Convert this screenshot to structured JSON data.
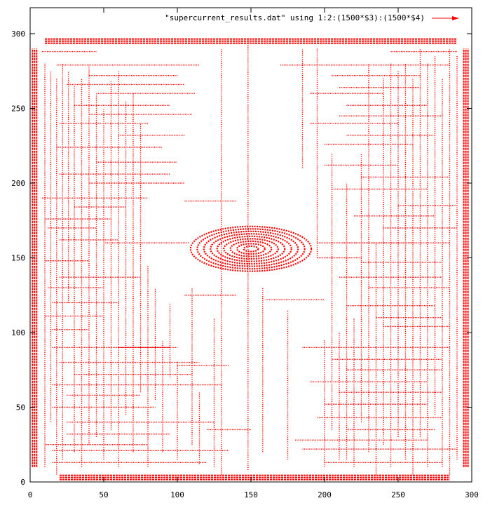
{
  "chart_data": {
    "type": "vector-field",
    "legend": {
      "label": "\"supercurrent_results.dat\" using 1:2:(1500*$3):(1500*$4)",
      "color": "#ff0000",
      "placement": "top-right"
    },
    "xlim": [
      0,
      300
    ],
    "ylim": [
      0,
      300
    ],
    "x_ticks": [
      0,
      50,
      100,
      150,
      200,
      250,
      300
    ],
    "y_ticks": [
      0,
      50,
      100,
      150,
      200,
      250,
      300
    ],
    "grid": false,
    "series_color": "#ff0000",
    "border_arrows": {
      "top": {
        "y": 295,
        "x_range": [
          10,
          290
        ],
        "direction": "+x"
      },
      "bottom": {
        "y": 3,
        "x_range": [
          20,
          285
        ],
        "direction": "+x"
      },
      "left": {
        "x": 3,
        "y_range": [
          10,
          290
        ],
        "direction": "-y"
      },
      "right": {
        "x": 296,
        "y_range": [
          10,
          290
        ],
        "direction": "+y"
      }
    },
    "vortex": {
      "center": [
        150,
        156
      ],
      "rx": 41,
      "ry": 15
    },
    "horizontal_streaks": [
      {
        "y": 288,
        "x": [
          8,
          45
        ]
      },
      {
        "y": 279,
        "x": [
          18,
          115
        ]
      },
      {
        "y": 272,
        "x": [
          40,
          100
        ]
      },
      {
        "y": 266,
        "x": [
          25,
          105
        ]
      },
      {
        "y": 260,
        "x": [
          45,
          112
        ]
      },
      {
        "y": 252,
        "x": [
          30,
          95
        ]
      },
      {
        "y": 246,
        "x": [
          40,
          110
        ]
      },
      {
        "y": 240,
        "x": [
          20,
          80
        ]
      },
      {
        "y": 232,
        "x": [
          60,
          105
        ]
      },
      {
        "y": 224,
        "x": [
          18,
          90
        ]
      },
      {
        "y": 214,
        "x": [
          45,
          100
        ]
      },
      {
        "y": 206,
        "x": [
          20,
          95
        ]
      },
      {
        "y": 200,
        "x": [
          40,
          105
        ]
      },
      {
        "y": 190,
        "x": [
          8,
          80
        ]
      },
      {
        "y": 184,
        "x": [
          30,
          65
        ]
      },
      {
        "y": 176,
        "x": [
          10,
          55
        ]
      },
      {
        "y": 170,
        "x": [
          12,
          45
        ]
      },
      {
        "y": 162,
        "x": [
          20,
          60
        ]
      },
      {
        "y": 148,
        "x": [
          10,
          40
        ]
      },
      {
        "y": 137,
        "x": [
          20,
          75
        ]
      },
      {
        "y": 130,
        "x": [
          12,
          50
        ]
      },
      {
        "y": 120,
        "x": [
          15,
          60
        ]
      },
      {
        "y": 111,
        "x": [
          10,
          50
        ]
      },
      {
        "y": 102,
        "x": [
          15,
          40
        ]
      },
      {
        "y": 90,
        "x": [
          15,
          100
        ]
      },
      {
        "y": 80,
        "x": [
          20,
          115
        ]
      },
      {
        "y": 72,
        "x": [
          30,
          110
        ]
      },
      {
        "y": 65,
        "x": [
          15,
          130
        ]
      },
      {
        "y": 58,
        "x": [
          25,
          75
        ]
      },
      {
        "y": 50,
        "x": [
          15,
          85
        ]
      },
      {
        "y": 40,
        "x": [
          25,
          125
        ]
      },
      {
        "y": 32,
        "x": [
          25,
          95
        ]
      },
      {
        "y": 25,
        "x": [
          10,
          80
        ]
      },
      {
        "y": 21,
        "x": [
          15,
          135
        ]
      },
      {
        "y": 13,
        "x": [
          15,
          120
        ]
      },
      {
        "y": 288,
        "x": [
          245,
          290
        ]
      },
      {
        "y": 279,
        "x": [
          170,
          285
        ]
      },
      {
        "y": 272,
        "x": [
          205,
          265
        ]
      },
      {
        "y": 264,
        "x": [
          210,
          265
        ]
      },
      {
        "y": 260,
        "x": [
          190,
          240
        ]
      },
      {
        "y": 252,
        "x": [
          215,
          270
        ]
      },
      {
        "y": 245,
        "x": [
          210,
          280
        ]
      },
      {
        "y": 240,
        "x": [
          190,
          250
        ]
      },
      {
        "y": 232,
        "x": [
          215,
          275
        ]
      },
      {
        "y": 226,
        "x": [
          200,
          260
        ]
      },
      {
        "y": 212,
        "x": [
          200,
          250
        ]
      },
      {
        "y": 204,
        "x": [
          225,
          285
        ]
      },
      {
        "y": 196,
        "x": [
          205,
          270
        ]
      },
      {
        "y": 185,
        "x": [
          250,
          290
        ]
      },
      {
        "y": 178,
        "x": [
          220,
          275
        ]
      },
      {
        "y": 170,
        "x": [
          240,
          290
        ]
      },
      {
        "y": 160,
        "x": [
          212,
          285
        ]
      },
      {
        "y": 147,
        "x": [
          225,
          280
        ]
      },
      {
        "y": 137,
        "x": [
          210,
          280
        ]
      },
      {
        "y": 130,
        "x": [
          230,
          285
        ]
      },
      {
        "y": 118,
        "x": [
          215,
          275
        ]
      },
      {
        "y": 110,
        "x": [
          235,
          280
        ]
      },
      {
        "y": 104,
        "x": [
          240,
          285
        ]
      },
      {
        "y": 90,
        "x": [
          185,
          285
        ]
      },
      {
        "y": 82,
        "x": [
          205,
          280
        ]
      },
      {
        "y": 75,
        "x": [
          215,
          280
        ]
      },
      {
        "y": 67,
        "x": [
          190,
          270
        ]
      },
      {
        "y": 60,
        "x": [
          210,
          280
        ]
      },
      {
        "y": 52,
        "x": [
          200,
          270
        ]
      },
      {
        "y": 43,
        "x": [
          195,
          280
        ]
      },
      {
        "y": 35,
        "x": [
          215,
          275
        ]
      },
      {
        "y": 28,
        "x": [
          180,
          270
        ]
      },
      {
        "y": 22,
        "x": [
          185,
          290
        ]
      },
      {
        "y": 13,
        "x": [
          200,
          280
        ]
      },
      {
        "y": 188,
        "x": [
          105,
          140
        ]
      },
      {
        "y": 160,
        "x": [
          50,
          108
        ]
      },
      {
        "y": 125,
        "x": [
          105,
          140
        ]
      },
      {
        "y": 122,
        "x": [
          160,
          200
        ]
      },
      {
        "y": 160,
        "x": [
          195,
          260
        ]
      },
      {
        "y": 150,
        "x": [
          195,
          225
        ]
      },
      {
        "y": 90,
        "x": [
          60,
          95
        ]
      },
      {
        "y": 78,
        "x": [
          100,
          135
        ]
      },
      {
        "y": 35,
        "x": [
          120,
          150
        ]
      }
    ],
    "vertical_streaks": [
      {
        "x": 10,
        "y": [
          10,
          280
        ]
      },
      {
        "x": 14,
        "y": [
          40,
          275
        ]
      },
      {
        "x": 18,
        "y": [
          5,
          270
        ]
      },
      {
        "x": 22,
        "y": [
          15,
          280
        ]
      },
      {
        "x": 26,
        "y": [
          120,
          275
        ]
      },
      {
        "x": 30,
        "y": [
          20,
          265
        ]
      },
      {
        "x": 35,
        "y": [
          10,
          270
        ]
      },
      {
        "x": 40,
        "y": [
          25,
          280
        ]
      },
      {
        "x": 45,
        "y": [
          30,
          260
        ]
      },
      {
        "x": 50,
        "y": [
          15,
          250
        ]
      },
      {
        "x": 55,
        "y": [
          35,
          268
        ]
      },
      {
        "x": 60,
        "y": [
          10,
          275
        ]
      },
      {
        "x": 65,
        "y": [
          45,
          255
        ]
      },
      {
        "x": 70,
        "y": [
          20,
          260
        ]
      },
      {
        "x": 75,
        "y": [
          60,
          240
        ]
      },
      {
        "x": 80,
        "y": [
          10,
          145
        ]
      },
      {
        "x": 85,
        "y": [
          55,
          130
        ]
      },
      {
        "x": 90,
        "y": [
          20,
          95
        ]
      },
      {
        "x": 95,
        "y": [
          70,
          120
        ]
      },
      {
        "x": 100,
        "y": [
          15,
          80
        ]
      },
      {
        "x": 110,
        "y": [
          25,
          130
        ]
      },
      {
        "x": 115,
        "y": [
          12,
          60
        ]
      },
      {
        "x": 125,
        "y": [
          10,
          110
        ]
      },
      {
        "x": 130,
        "y": [
          5,
          290
        ]
      },
      {
        "x": 148,
        "y": [
          8,
          295
        ]
      },
      {
        "x": 158,
        "y": [
          20,
          130
        ]
      },
      {
        "x": 175,
        "y": [
          15,
          115
        ]
      },
      {
        "x": 185,
        "y": [
          210,
          290
        ]
      },
      {
        "x": 195,
        "y": [
          150,
          290
        ]
      },
      {
        "x": 200,
        "y": [
          10,
          95
        ]
      },
      {
        "x": 205,
        "y": [
          35,
          220
        ]
      },
      {
        "x": 210,
        "y": [
          15,
          100
        ]
      },
      {
        "x": 215,
        "y": [
          15,
          200
        ]
      },
      {
        "x": 220,
        "y": [
          10,
          110
        ]
      },
      {
        "x": 225,
        "y": [
          40,
          220
        ]
      },
      {
        "x": 230,
        "y": [
          20,
          280
        ]
      },
      {
        "x": 235,
        "y": [
          5,
          160
        ]
      },
      {
        "x": 240,
        "y": [
          25,
          270
        ]
      },
      {
        "x": 245,
        "y": [
          10,
          280
        ]
      },
      {
        "x": 250,
        "y": [
          30,
          275
        ]
      },
      {
        "x": 255,
        "y": [
          15,
          280
        ]
      },
      {
        "x": 260,
        "y": [
          5,
          270
        ]
      },
      {
        "x": 265,
        "y": [
          30,
          290
        ]
      },
      {
        "x": 270,
        "y": [
          10,
          280
        ]
      },
      {
        "x": 275,
        "y": [
          45,
          285
        ]
      },
      {
        "x": 280,
        "y": [
          10,
          270
        ]
      },
      {
        "x": 285,
        "y": [
          5,
          290
        ]
      },
      {
        "x": 290,
        "y": [
          15,
          285
        ]
      }
    ]
  }
}
